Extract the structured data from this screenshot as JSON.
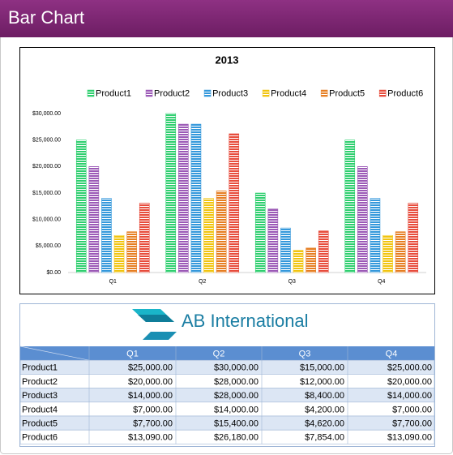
{
  "header": {
    "title": "Bar Chart"
  },
  "chart_data": {
    "type": "bar",
    "title": "2013",
    "categories": [
      "Q1",
      "Q2",
      "Q3",
      "Q4"
    ],
    "series": [
      {
        "name": "Product1",
        "color": "#2fcf6f",
        "values": [
          25000,
          30000,
          15000,
          25000
        ]
      },
      {
        "name": "Product2",
        "color": "#9b59b6",
        "values": [
          20000,
          28000,
          12000,
          20000
        ]
      },
      {
        "name": "Product3",
        "color": "#3498db",
        "values": [
          14000,
          28000,
          8400,
          14000
        ]
      },
      {
        "name": "Product4",
        "color": "#f1c40f",
        "values": [
          7000,
          14000,
          4200,
          7000
        ]
      },
      {
        "name": "Product5",
        "color": "#e67e22",
        "values": [
          7700,
          15400,
          4620,
          7700
        ]
      },
      {
        "name": "Product6",
        "color": "#e74c3c",
        "values": [
          13090,
          26180,
          7854,
          13090
        ]
      }
    ],
    "ylim": [
      0,
      30000
    ],
    "yticks": [
      {
        "value": 0,
        "label": "$0.00"
      },
      {
        "value": 5000,
        "label": "$5,000.00"
      },
      {
        "value": 10000,
        "label": "$10,000.00"
      },
      {
        "value": 15000,
        "label": "$15,000.00"
      },
      {
        "value": 20000,
        "label": "$20,000.00"
      },
      {
        "value": 25000,
        "label": "$25,000.00"
      },
      {
        "value": 30000,
        "label": "$30,000.00"
      }
    ],
    "legend": "top"
  },
  "logo": {
    "text": "AB International"
  },
  "table": {
    "columns": [
      "Q1",
      "Q2",
      "Q3",
      "Q4"
    ],
    "rows": [
      [
        "Product1",
        "$25,000.00",
        "$30,000.00",
        "$15,000.00",
        "$25,000.00"
      ],
      [
        "Product2",
        "$20,000.00",
        "$28,000.00",
        "$12,000.00",
        "$20,000.00"
      ],
      [
        "Product3",
        "$14,000.00",
        "$28,000.00",
        "$8,400.00",
        "$14,000.00"
      ],
      [
        "Product4",
        "$7,000.00",
        "$14,000.00",
        "$4,200.00",
        "$7,000.00"
      ],
      [
        "Product5",
        "$7,700.00",
        "$15,400.00",
        "$4,620.00",
        "$7,700.00"
      ],
      [
        "Product6",
        "$13,090.00",
        "$26,180.00",
        "$7,854.00",
        "$13,090.00"
      ]
    ]
  }
}
